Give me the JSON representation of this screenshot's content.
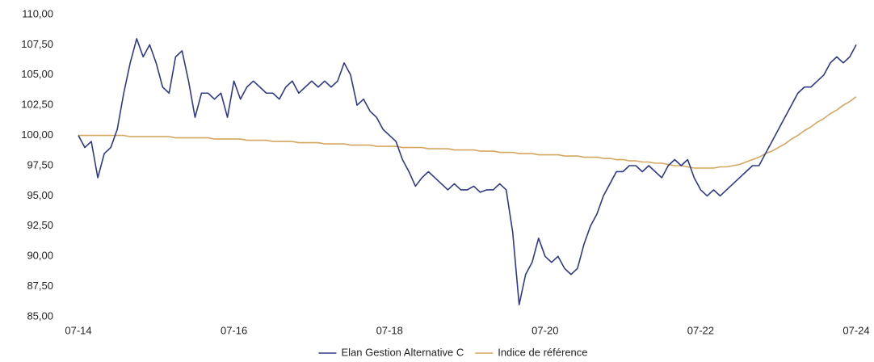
{
  "chart_data": {
    "type": "line",
    "categories": [
      "07-14",
      null,
      null,
      null,
      null,
      null,
      null,
      null,
      null,
      null,
      null,
      null,
      null,
      null,
      null,
      null,
      null,
      null,
      null,
      null,
      null,
      null,
      null,
      null,
      "07-16",
      null,
      null,
      null,
      null,
      null,
      null,
      null,
      null,
      null,
      null,
      null,
      null,
      null,
      null,
      null,
      null,
      null,
      null,
      null,
      null,
      null,
      null,
      null,
      "07-18",
      null,
      null,
      null,
      null,
      null,
      null,
      null,
      null,
      null,
      null,
      null,
      null,
      null,
      null,
      null,
      null,
      null,
      null,
      null,
      null,
      null,
      null,
      null,
      "07-20",
      null,
      null,
      null,
      null,
      null,
      null,
      null,
      null,
      null,
      null,
      null,
      null,
      null,
      null,
      null,
      null,
      null,
      null,
      null,
      null,
      null,
      null,
      null,
      "07-22",
      null,
      null,
      null,
      null,
      null,
      null,
      null,
      null,
      null,
      null,
      null,
      null,
      null,
      null,
      null,
      null,
      null,
      null,
      null,
      null,
      null,
      null,
      null,
      "07-24"
    ],
    "series": [
      {
        "name": "Elan Gestion Alternative C",
        "color": "#2e3a87",
        "values": [
          100.0,
          99.0,
          99.5,
          96.5,
          98.5,
          99.0,
          100.5,
          103.5,
          106.0,
          108.0,
          106.5,
          107.5,
          106.0,
          104.0,
          103.5,
          106.5,
          107.0,
          104.5,
          101.5,
          103.5,
          103.5,
          103.0,
          103.5,
          101.5,
          104.5,
          103.0,
          104.0,
          104.5,
          104.0,
          103.5,
          103.5,
          103.0,
          104.0,
          104.5,
          103.5,
          104.0,
          104.5,
          104.0,
          104.5,
          104.0,
          104.5,
          106.0,
          105.0,
          102.5,
          103.0,
          102.0,
          101.5,
          100.5,
          100.0,
          99.5,
          98.0,
          97.0,
          95.8,
          96.5,
          97.0,
          96.5,
          96.0,
          95.5,
          96.0,
          95.5,
          95.5,
          95.8,
          95.3,
          95.5,
          95.5,
          96.0,
          95.5,
          92.0,
          86.0,
          88.5,
          89.5,
          91.5,
          90.0,
          89.5,
          90.0,
          89.0,
          88.5,
          89.0,
          91.0,
          92.5,
          93.5,
          95.0,
          96.0,
          97.0,
          97.0,
          97.5,
          97.5,
          97.0,
          97.5,
          97.0,
          96.5,
          97.5,
          98.0,
          97.5,
          98.0,
          96.5,
          95.5,
          95.0,
          95.5,
          95.0,
          95.5,
          96.0,
          96.5,
          97.0,
          97.5,
          97.5,
          98.5,
          99.5,
          100.5,
          101.5,
          102.5,
          103.5,
          104.0,
          104.0,
          104.5,
          105.0,
          106.0,
          106.5,
          106.0,
          106.5,
          107.5
        ]
      },
      {
        "name": "Indice de référence",
        "color": "#d4a760",
        "values": [
          100.0,
          100.0,
          100.0,
          100.0,
          100.0,
          100.0,
          100.0,
          100.0,
          99.9,
          99.9,
          99.9,
          99.9,
          99.9,
          99.9,
          99.9,
          99.8,
          99.8,
          99.8,
          99.8,
          99.8,
          99.8,
          99.7,
          99.7,
          99.7,
          99.7,
          99.7,
          99.6,
          99.6,
          99.6,
          99.6,
          99.5,
          99.5,
          99.5,
          99.5,
          99.4,
          99.4,
          99.4,
          99.4,
          99.3,
          99.3,
          99.3,
          99.3,
          99.2,
          99.2,
          99.2,
          99.2,
          99.1,
          99.1,
          99.1,
          99.1,
          99.0,
          99.0,
          99.0,
          99.0,
          98.9,
          98.9,
          98.9,
          98.9,
          98.8,
          98.8,
          98.8,
          98.8,
          98.7,
          98.7,
          98.7,
          98.6,
          98.6,
          98.6,
          98.5,
          98.5,
          98.5,
          98.4,
          98.4,
          98.4,
          98.4,
          98.3,
          98.3,
          98.3,
          98.2,
          98.2,
          98.2,
          98.1,
          98.1,
          98.0,
          98.0,
          97.9,
          97.9,
          97.8,
          97.8,
          97.7,
          97.7,
          97.6,
          97.5,
          97.5,
          97.4,
          97.3,
          97.3,
          97.3,
          97.3,
          97.4,
          97.4,
          97.5,
          97.6,
          97.8,
          98.0,
          98.2,
          98.5,
          98.7,
          99.0,
          99.3,
          99.7,
          100.0,
          100.4,
          100.7,
          101.1,
          101.4,
          101.8,
          102.1,
          102.5,
          102.8,
          103.2
        ]
      }
    ],
    "ylim": [
      85,
      110
    ],
    "yticks": [
      {
        "value": 85,
        "label": "85,00"
      },
      {
        "value": 87.5,
        "label": "87,50"
      },
      {
        "value": 90,
        "label": "90,00"
      },
      {
        "value": 92.5,
        "label": "92,50"
      },
      {
        "value": 95,
        "label": "95,00"
      },
      {
        "value": 97.5,
        "label": "97,50"
      },
      {
        "value": 100,
        "label": "100,00"
      },
      {
        "value": 102.5,
        "label": "102,50"
      },
      {
        "value": 105,
        "label": "105,00"
      },
      {
        "value": 107.5,
        "label": "107,50"
      },
      {
        "value": 110,
        "label": "110,00"
      }
    ],
    "grid": false,
    "legend": "bottom"
  }
}
